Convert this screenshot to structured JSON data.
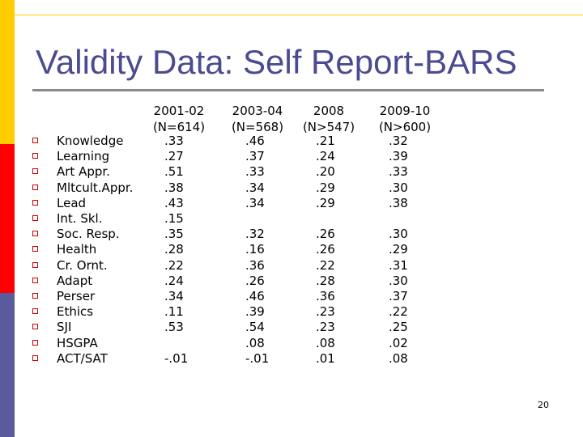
{
  "slide": {
    "title": "Validity Data: Self Report-BARS",
    "page_number": "20",
    "accent_colors": {
      "yellow": "#ffcc00",
      "red": "#ff0000",
      "blue": "#5a5a9c",
      "title": "#4b4b8f",
      "bullet": "#cc0000"
    }
  },
  "table": {
    "columns": [
      {
        "year": "2001-02",
        "n": "(N=614)"
      },
      {
        "year": "2003-04",
        "n": "(N=568)"
      },
      {
        "year": "2008",
        "n": "(N>547)"
      },
      {
        "year": "2009-10",
        "n": "(N>600)"
      }
    ],
    "rows": [
      {
        "label": "Knowledge",
        "values": [
          ".33",
          ".46",
          ".21",
          ".32"
        ]
      },
      {
        "label": "Learning",
        "values": [
          ".27",
          ".37",
          ".24",
          ".39"
        ]
      },
      {
        "label": "Art Appr.",
        "values": [
          ".51",
          ".33",
          ".20",
          ".33"
        ]
      },
      {
        "label": "Mltcult.Appr.",
        "values": [
          ".38",
          ".34",
          ".29",
          ".30"
        ]
      },
      {
        "label": "Lead",
        "values": [
          ".43",
          ".34",
          ".29",
          ".38"
        ]
      },
      {
        "label": "Int. Skl.",
        "values": [
          ".15",
          "",
          "",
          ""
        ]
      },
      {
        "label": "Soc. Resp.",
        "values": [
          ".35",
          ".32",
          ".26",
          ".30"
        ]
      },
      {
        "label": "Health",
        "values": [
          ".28",
          ".16",
          ".26",
          ".29"
        ]
      },
      {
        "label": "Cr. Ornt.",
        "values": [
          ".22",
          ".36",
          ".22",
          ".31"
        ]
      },
      {
        "label": "Adapt",
        "values": [
          ".24",
          ".26",
          ".28",
          ".30"
        ]
      },
      {
        "label": "Perser",
        "values": [
          ".34",
          ".46",
          ".36",
          ".37"
        ]
      },
      {
        "label": "Ethics",
        "values": [
          ".11",
          ".39",
          ".23",
          ".22"
        ]
      },
      {
        "label": "SJI",
        "values": [
          ".53",
          ".54",
          ".23",
          ".25"
        ]
      },
      {
        "label": "HSGPA",
        "values": [
          "",
          ".08",
          ".08",
          ".02"
        ]
      },
      {
        "label": "ACT/SAT",
        "values": [
          "-.01",
          "-.01",
          ".01",
          ".08"
        ]
      }
    ]
  }
}
